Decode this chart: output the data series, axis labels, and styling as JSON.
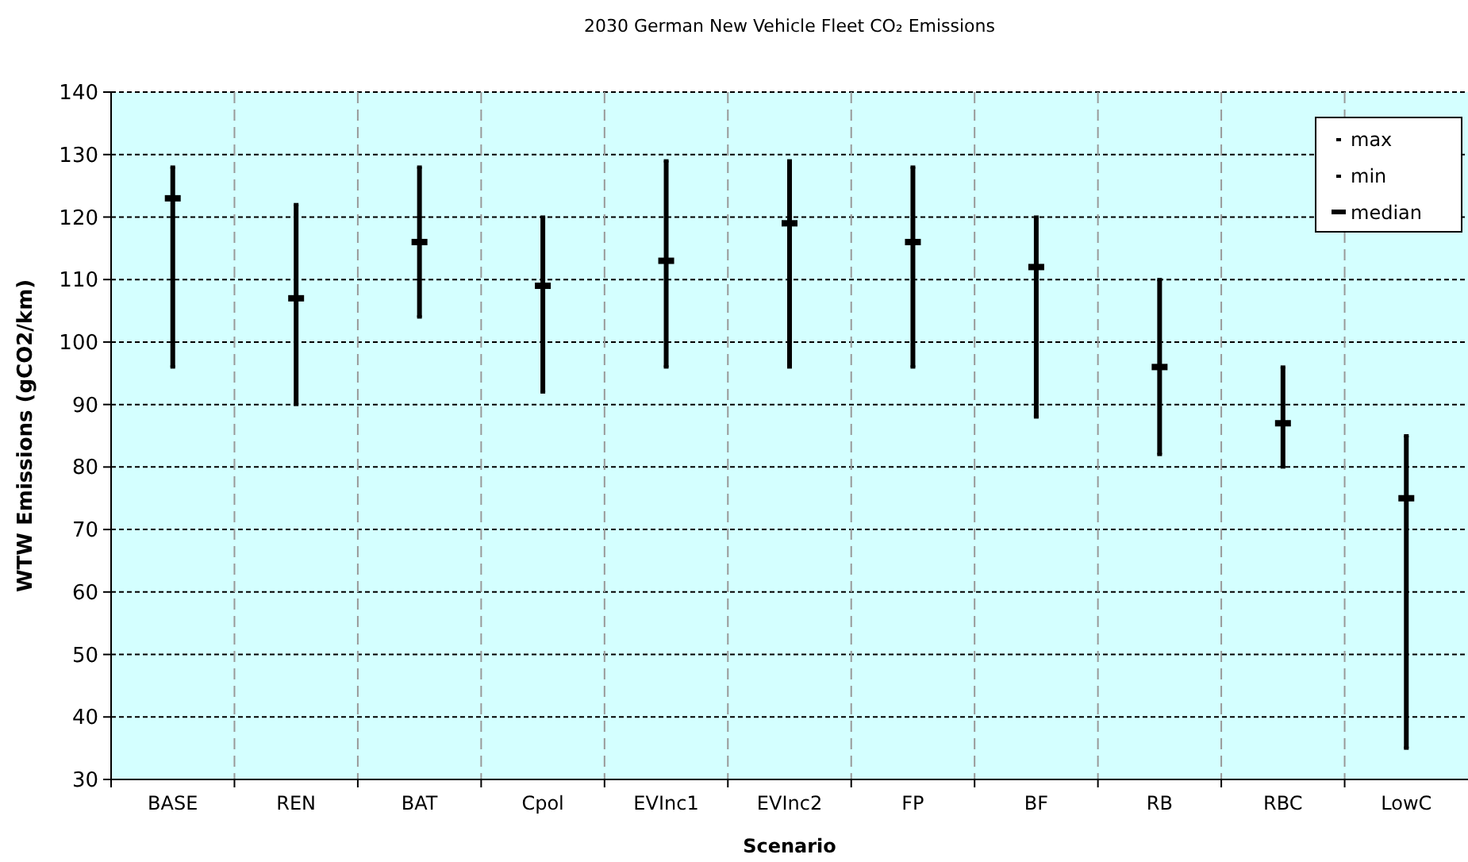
{
  "chart_data": {
    "type": "scatter",
    "title": "2030 German New Vehicle Fleet CO₂ Emissions",
    "xlabel": "Scenario",
    "ylabel": "WTW Emissions (gCO2/km)",
    "categories": [
      "BASE",
      "REN",
      "BAT",
      "Cpol",
      "EVInc1",
      "EVInc2",
      "FP",
      "BF",
      "RB",
      "RBC",
      "LowC"
    ],
    "series": [
      {
        "name": "max",
        "color": "#000000",
        "values": [
          128,
          122,
          128,
          120,
          129,
          129,
          128,
          120,
          110,
          96,
          85
        ]
      },
      {
        "name": "min",
        "color": "#000000",
        "values": [
          96,
          90,
          104,
          92,
          96,
          96,
          96,
          88,
          82,
          80,
          35
        ]
      },
      {
        "name": "median",
        "color": "#000000",
        "values": [
          123,
          107,
          116,
          109,
          113,
          119,
          116,
          112,
          96,
          87,
          75
        ]
      }
    ],
    "ylim": [
      30,
      140
    ],
    "yticks": [
      30,
      40,
      50,
      60,
      70,
      80,
      90,
      100,
      110,
      120,
      130,
      140
    ],
    "grid": true,
    "legend": "top right"
  }
}
